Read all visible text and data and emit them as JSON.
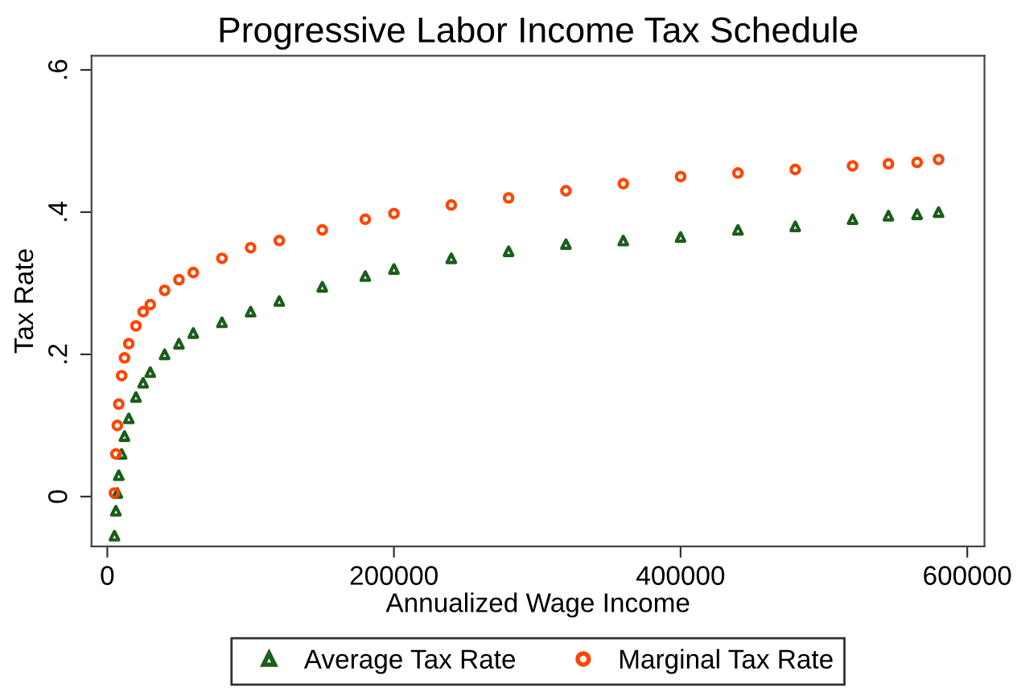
{
  "chart_data": {
    "type": "scatter",
    "title": "Progressive Labor Income Tax Schedule",
    "xlabel": "Annualized Wage Income",
    "ylabel": "Tax Rate",
    "x": [
      5000,
      6000,
      7000,
      8000,
      10000,
      12000,
      15000,
      20000,
      25000,
      30000,
      40000,
      50000,
      60000,
      80000,
      100000,
      120000,
      150000,
      180000,
      200000,
      240000,
      280000,
      320000,
      360000,
      400000,
      440000,
      480000,
      520000,
      545000,
      565000,
      580000
    ],
    "series": [
      {
        "name": "Average Tax Rate",
        "color": "#1a5e1a",
        "marker": "triangle",
        "values": [
          -0.055,
          -0.02,
          0.005,
          0.03,
          0.06,
          0.085,
          0.11,
          0.14,
          0.16,
          0.175,
          0.2,
          0.215,
          0.23,
          0.245,
          0.26,
          0.275,
          0.295,
          0.31,
          0.32,
          0.335,
          0.345,
          0.355,
          0.36,
          0.365,
          0.375,
          0.38,
          0.39,
          0.395,
          0.397,
          0.4
        ]
      },
      {
        "name": "Marginal Tax Rate",
        "color": "#ff4500",
        "marker": "circle",
        "values": [
          0.005,
          0.06,
          0.1,
          0.13,
          0.17,
          0.195,
          0.215,
          0.24,
          0.26,
          0.27,
          0.29,
          0.305,
          0.315,
          0.335,
          0.35,
          0.36,
          0.375,
          0.39,
          0.398,
          0.41,
          0.42,
          0.43,
          0.44,
          0.45,
          0.455,
          0.46,
          0.465,
          0.468,
          0.47,
          0.474
        ]
      }
    ],
    "xlim": [
      -11000,
      612000
    ],
    "ylim": [
      -0.07,
      0.62
    ],
    "xticks": [
      0,
      200000,
      400000,
      600000
    ],
    "yticks": [
      0,
      {
        "value": 0.2,
        "label": ".2"
      },
      {
        "value": 0.4,
        "label": ".4"
      },
      {
        "value": 0.6,
        "label": ".6"
      }
    ],
    "legend": "bottom",
    "grid": false
  }
}
